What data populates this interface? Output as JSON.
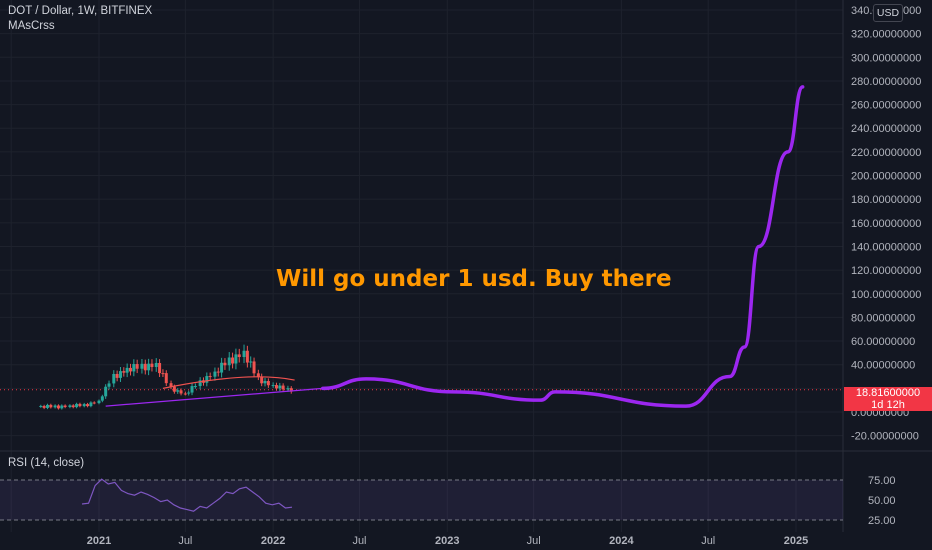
{
  "header": {
    "symbol_line": "DOT / Dollar, 1W, BITFINEX",
    "indicator": "MAsCrss",
    "currency": "USD"
  },
  "annotation": "Will go under 1 usd. Buy there",
  "price_axis": {
    "labels": [
      "340.00000000",
      "320.00000000",
      "300.00000000",
      "280.00000000",
      "260.00000000",
      "240.00000000",
      "220.00000000",
      "200.00000000",
      "180.00000000",
      "160.00000000",
      "140.00000000",
      "120.00000000",
      "100.00000000",
      "80.00000000",
      "60.00000000",
      "40.00000000",
      "0.00000000",
      "-20.00000000"
    ]
  },
  "current_price": {
    "value": "18.81600000",
    "countdown": "1d 12h"
  },
  "rsi": {
    "label": "RSI (14, close)",
    "axis_labels": [
      "75.00",
      "50.00",
      "25.00"
    ]
  },
  "time_axis": {
    "labels": [
      "2021",
      "Jul",
      "2022",
      "Jul",
      "2023",
      "Jul",
      "2024",
      "Jul",
      "2025"
    ]
  },
  "colors": {
    "background": "#131722",
    "up": "#26a69a",
    "down": "#ef5350",
    "projection": "#9c27f0",
    "ma": "#f0524f",
    "annotation": "#ff9800",
    "price_tag": "#f23645",
    "rsi_line": "#7e57c2"
  },
  "chart_data": {
    "type": "candlestick",
    "scale": "linear",
    "y_range": [
      -20,
      340
    ],
    "grid": true,
    "timeframe": "1W",
    "candles_weekly_approx": [
      {
        "t": "2020-09",
        "close": 4.5
      },
      {
        "t": "2020-10",
        "close": 4.3
      },
      {
        "t": "2020-11",
        "close": 5.0
      },
      {
        "t": "2020-12",
        "close": 5.5
      },
      {
        "t": "2021-01",
        "close": 9.0
      },
      {
        "t": "2021-02",
        "close": 30.0
      },
      {
        "t": "2021-03",
        "close": 36.0
      },
      {
        "t": "2021-04",
        "close": 38.0
      },
      {
        "t": "2021-05",
        "close": 40.0
      },
      {
        "t": "2021-06",
        "close": 20.0
      },
      {
        "t": "2021-07",
        "close": 15.0
      },
      {
        "t": "2021-08",
        "close": 25.0
      },
      {
        "t": "2021-09",
        "close": 33.0
      },
      {
        "t": "2021-10",
        "close": 43.0
      },
      {
        "t": "2021-11",
        "close": 50.0
      },
      {
        "t": "2021-12",
        "close": 28.0
      },
      {
        "t": "2022-01",
        "close": 22.0
      },
      {
        "t": "2022-02",
        "close": 18.8
      }
    ],
    "projection_path": [
      {
        "t": "2022-04",
        "y": 20
      },
      {
        "t": "2022-07",
        "y": 28
      },
      {
        "t": "2023-01",
        "y": 17
      },
      {
        "t": "2023-07",
        "y": 10
      },
      {
        "t": "2023-08",
        "y": 17
      },
      {
        "t": "2024-05",
        "y": 5
      },
      {
        "t": "2024-08",
        "y": 30
      },
      {
        "t": "2024-09",
        "y": 55
      },
      {
        "t": "2024-10",
        "y": 140
      },
      {
        "t": "2024-12",
        "y": 220
      },
      {
        "t": "2025-01",
        "y": 275
      }
    ],
    "rsi_values": [
      45,
      46,
      68,
      76,
      70,
      72,
      62,
      58,
      56,
      60,
      57,
      53,
      48,
      50,
      44,
      40,
      38,
      36,
      42,
      40,
      46,
      52,
      60,
      58,
      64,
      66,
      60,
      54,
      46,
      44,
      46,
      40,
      41
    ],
    "rsi_range": [
      25,
      75
    ]
  }
}
